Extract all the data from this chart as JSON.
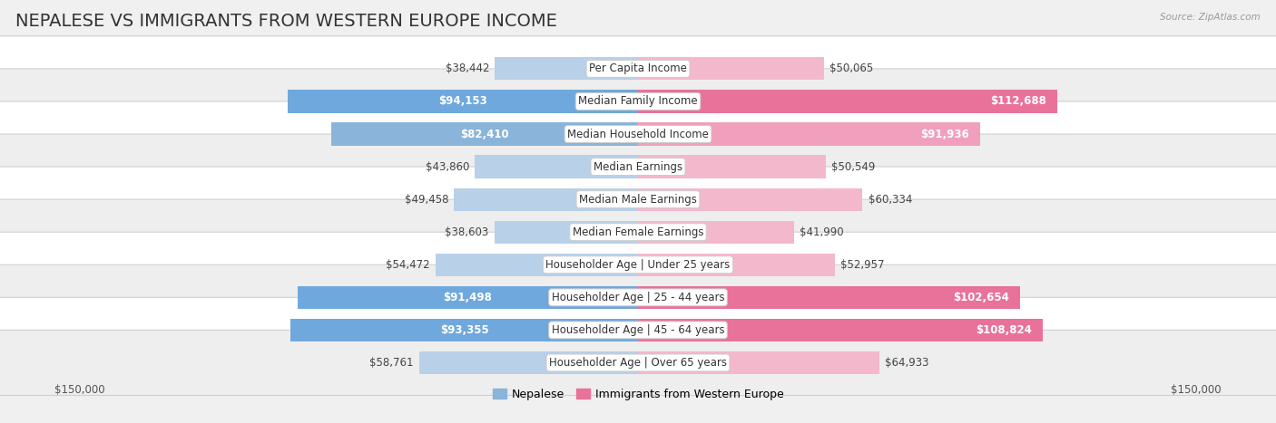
{
  "title": "NEPALESE VS IMMIGRANTS FROM WESTERN EUROPE INCOME",
  "source": "Source: ZipAtlas.com",
  "categories": [
    "Per Capita Income",
    "Median Family Income",
    "Median Household Income",
    "Median Earnings",
    "Median Male Earnings",
    "Median Female Earnings",
    "Householder Age | Under 25 years",
    "Householder Age | 25 - 44 years",
    "Householder Age | 45 - 64 years",
    "Householder Age | Over 65 years"
  ],
  "nepalese": [
    38442,
    94153,
    82410,
    43860,
    49458,
    38603,
    54472,
    91498,
    93355,
    58761
  ],
  "western_europe": [
    50065,
    112688,
    91936,
    50549,
    60334,
    41990,
    52957,
    102654,
    108824,
    64933
  ],
  "nepalese_labels": [
    "$38,442",
    "$94,153",
    "$82,410",
    "$43,860",
    "$49,458",
    "$38,603",
    "$54,472",
    "$91,498",
    "$93,355",
    "$58,761"
  ],
  "western_europe_labels": [
    "$50,065",
    "$112,688",
    "$91,936",
    "$50,549",
    "$60,334",
    "$41,990",
    "$52,957",
    "$102,654",
    "$108,824",
    "$64,933"
  ],
  "nepalese_colors": [
    "#b8d0e8",
    "#6fa8dc",
    "#8ab4d9",
    "#b8d0e8",
    "#b8d0e8",
    "#b8d0e8",
    "#b8d0e8",
    "#6fa8dc",
    "#6fa8dc",
    "#b8d0e8"
  ],
  "western_europe_colors": [
    "#f4b8cc",
    "#e8729a",
    "#f0a0bc",
    "#f4b8cc",
    "#f4b8cc",
    "#f4b8cc",
    "#f4b8cc",
    "#e8729a",
    "#e8729a",
    "#f4b8cc"
  ],
  "nepalese_inside_threshold": 75000,
  "western_europe_inside_threshold": 75000,
  "max_value": 150000,
  "background_color": "#f0f0f0",
  "row_colors": [
    "#ffffff",
    "#eeeeee",
    "#ffffff",
    "#eeeeee",
    "#ffffff",
    "#eeeeee",
    "#ffffff",
    "#eeeeee",
    "#ffffff",
    "#eeeeee"
  ],
  "title_fontsize": 14,
  "label_fontsize": 8.5,
  "axis_label_fontsize": 8.5,
  "category_fontsize": 8.5,
  "legend_fontsize": 9
}
